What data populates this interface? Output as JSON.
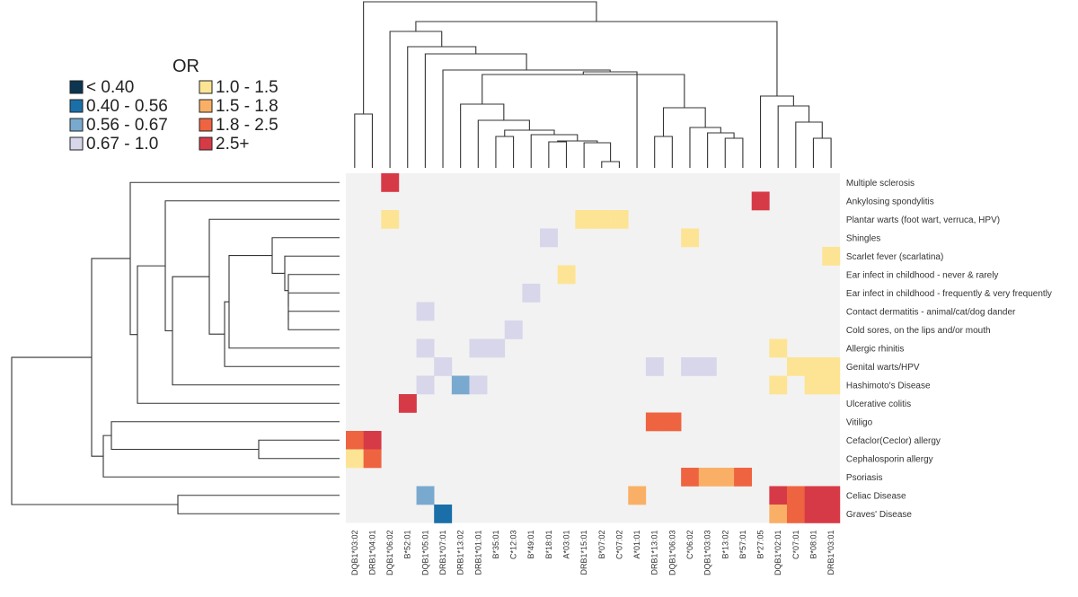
{
  "chart_data": {
    "type": "heatmap",
    "legend": {
      "title": "OR",
      "bins": [
        {
          "label": "< 0.40",
          "color": "#0b3550"
        },
        {
          "label": "0.40 - 0.56",
          "color": "#1b6fa8"
        },
        {
          "label": "0.56 - 0.67",
          "color": "#7aa9cf"
        },
        {
          "label": "0.67 - 1.0",
          "color": "#d7d6ea"
        },
        {
          "label": "1.0 - 1.5",
          "color": "#fde494"
        },
        {
          "label": "1.5 - 1.8",
          "color": "#f9b066"
        },
        {
          "label": "1.8 - 2.5",
          "color": "#ee6440"
        },
        {
          "label": "2.5+",
          "color": "#d73a47"
        }
      ]
    },
    "background_color": "#f2f2f2",
    "columns": [
      "DQB1*03:02",
      "DRB1*04:01",
      "DQB1*06:02",
      "B*52:01",
      "DQB1*05:01",
      "DRB1*07:01",
      "DRB1*13:02",
      "DRB1*01:01",
      "B*35:01",
      "C*12:03",
      "B*49:01",
      "B*18:01",
      "A*03:01",
      "DRB1*15:01",
      "B*07:02",
      "C*07:02",
      "A*01:01",
      "DRB1*13:01",
      "DQB1*06:03",
      "C*06:02",
      "DQB1*03:03",
      "B*13:02",
      "B*57:01",
      "B*27:05",
      "DQB1*02:01",
      "C*07:01",
      "B*08:01",
      "DRB1*03:01"
    ],
    "rows": [
      "Multiple sclerosis",
      "Ankylosing spondylitis",
      "Plantar warts (foot wart, verruca, HPV)",
      "Shingles",
      "Scarlet fever (scarlatina)",
      "Ear infect in childhood - never & rarely",
      "Ear infect in childhood - frequently & very frequently",
      "Contact dermatitis - animal/cat/dog dander",
      "Cold sores, on the lips and/or mouth",
      "Allergic rhinitis",
      "Genital warts/HPV",
      "Hashimoto's Disease",
      "Ulcerative colitis",
      "Vitiligo",
      "Cefaclor(Ceclor) allergy",
      "Cephalosporin allergy",
      "Psoriasis",
      "Celiac Disease",
      "Graves' Disease"
    ],
    "cells": [
      {
        "row": 0,
        "col": 2,
        "bin": 7
      },
      {
        "row": 1,
        "col": 23,
        "bin": 7
      },
      {
        "row": 2,
        "col": 2,
        "bin": 4
      },
      {
        "row": 2,
        "col": 13,
        "bin": 4
      },
      {
        "row": 2,
        "col": 14,
        "bin": 4
      },
      {
        "row": 2,
        "col": 15,
        "bin": 4
      },
      {
        "row": 3,
        "col": 11,
        "bin": 3
      },
      {
        "row": 3,
        "col": 19,
        "bin": 4
      },
      {
        "row": 4,
        "col": 27,
        "bin": 4
      },
      {
        "row": 5,
        "col": 12,
        "bin": 4
      },
      {
        "row": 6,
        "col": 10,
        "bin": 3
      },
      {
        "row": 7,
        "col": 4,
        "bin": 3
      },
      {
        "row": 8,
        "col": 9,
        "bin": 3
      },
      {
        "row": 9,
        "col": 4,
        "bin": 3
      },
      {
        "row": 9,
        "col": 7,
        "bin": 3
      },
      {
        "row": 9,
        "col": 8,
        "bin": 3
      },
      {
        "row": 9,
        "col": 24,
        "bin": 4
      },
      {
        "row": 10,
        "col": 5,
        "bin": 3
      },
      {
        "row": 10,
        "col": 17,
        "bin": 3
      },
      {
        "row": 10,
        "col": 19,
        "bin": 3
      },
      {
        "row": 10,
        "col": 20,
        "bin": 3
      },
      {
        "row": 10,
        "col": 25,
        "bin": 4
      },
      {
        "row": 10,
        "col": 26,
        "bin": 4
      },
      {
        "row": 10,
        "col": 27,
        "bin": 4
      },
      {
        "row": 11,
        "col": 4,
        "bin": 3
      },
      {
        "row": 11,
        "col": 6,
        "bin": 2
      },
      {
        "row": 11,
        "col": 7,
        "bin": 3
      },
      {
        "row": 11,
        "col": 24,
        "bin": 4
      },
      {
        "row": 11,
        "col": 26,
        "bin": 4
      },
      {
        "row": 11,
        "col": 27,
        "bin": 4
      },
      {
        "row": 12,
        "col": 3,
        "bin": 7
      },
      {
        "row": 13,
        "col": 17,
        "bin": 6
      },
      {
        "row": 13,
        "col": 18,
        "bin": 6
      },
      {
        "row": 14,
        "col": 0,
        "bin": 6
      },
      {
        "row": 14,
        "col": 1,
        "bin": 7
      },
      {
        "row": 15,
        "col": 0,
        "bin": 4
      },
      {
        "row": 15,
        "col": 1,
        "bin": 6
      },
      {
        "row": 16,
        "col": 19,
        "bin": 6
      },
      {
        "row": 16,
        "col": 20,
        "bin": 5
      },
      {
        "row": 16,
        "col": 21,
        "bin": 5
      },
      {
        "row": 16,
        "col": 22,
        "bin": 6
      },
      {
        "row": 17,
        "col": 4,
        "bin": 2
      },
      {
        "row": 17,
        "col": 16,
        "bin": 5
      },
      {
        "row": 17,
        "col": 24,
        "bin": 7
      },
      {
        "row": 17,
        "col": 25,
        "bin": 6
      },
      {
        "row": 17,
        "col": 26,
        "bin": 7
      },
      {
        "row": 17,
        "col": 27,
        "bin": 7
      },
      {
        "row": 18,
        "col": 5,
        "bin": 1
      },
      {
        "row": 18,
        "col": 24,
        "bin": 5
      },
      {
        "row": 18,
        "col": 25,
        "bin": 6
      },
      {
        "row": 18,
        "col": 26,
        "bin": 7
      },
      {
        "row": 18,
        "col": 27,
        "bin": 7
      }
    ]
  }
}
